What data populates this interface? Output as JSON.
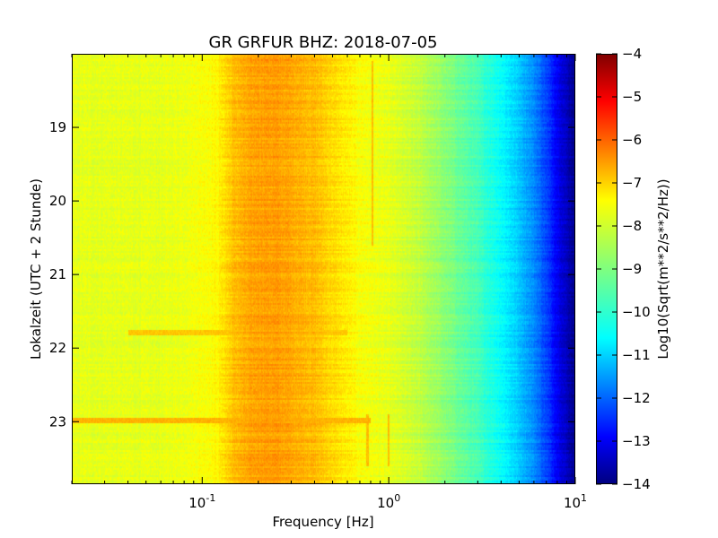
{
  "chart_data": {
    "type": "heatmap",
    "title": "GR GRFUR BHZ: 2018-07-05",
    "xlabel": "Frequency [Hz]",
    "ylabel": "Lokalzeit (UTC + 2 Stunde)",
    "colorbar_label": "Log10(Sqrt(m**2/s**2/Hz))",
    "x_scale": "log",
    "x_range_hz": [
      0.02,
      10
    ],
    "x_ticks": [
      {
        "base": "10",
        "exp": "-1",
        "value": 0.1
      },
      {
        "base": "10",
        "exp": "0",
        "value": 1
      },
      {
        "base": "10",
        "exp": "1",
        "value": 10
      }
    ],
    "y_range_hours": [
      18.0,
      23.85
    ],
    "y_ticks": [
      "19",
      "20",
      "21",
      "22",
      "23"
    ],
    "colorbar_range": [
      -14,
      -4
    ],
    "colorbar_ticks": [
      "-4",
      "-5",
      "-6",
      "-7",
      "-8",
      "-9",
      "-10",
      "-11",
      "-12",
      "-13",
      "-14"
    ],
    "colormap": "jet",
    "spectrum_profile": {
      "frequency_hz": [
        0.02,
        0.04,
        0.06,
        0.08,
        0.1,
        0.12,
        0.15,
        0.2,
        0.25,
        0.3,
        0.4,
        0.5,
        0.7,
        1.0,
        1.5,
        2.0,
        3.0,
        4.0,
        5.0,
        6.0,
        7.0,
        8.0,
        9.0,
        10.0
      ],
      "log10_amplitude": [
        -8.0,
        -8.0,
        -8.0,
        -7.9,
        -7.8,
        -7.7,
        -7.1,
        -6.8,
        -6.8,
        -6.9,
        -7.1,
        -7.4,
        -7.8,
        -8.0,
        -8.4,
        -8.9,
        -9.6,
        -10.2,
        -10.8,
        -11.4,
        -12.1,
        -12.8,
        -13.4,
        -13.9
      ]
    },
    "events": [
      {
        "time_hours": 21.8,
        "from_hz": 0.04,
        "to_hz": 0.6,
        "log10_amplitude": -7.2
      },
      {
        "time_hours": 22.98,
        "from_hz": 0.02,
        "to_hz": 0.8,
        "log10_amplitude": -7.0
      }
    ],
    "narrow_lines": [
      {
        "frequency_hz": 0.82,
        "from_hours": 18.1,
        "to_hours": 20.6
      },
      {
        "frequency_hz": 0.77,
        "from_hours": 22.9,
        "to_hours": 23.6
      },
      {
        "frequency_hz": 1.0,
        "from_hours": 22.9,
        "to_hours": 23.6
      }
    ]
  }
}
